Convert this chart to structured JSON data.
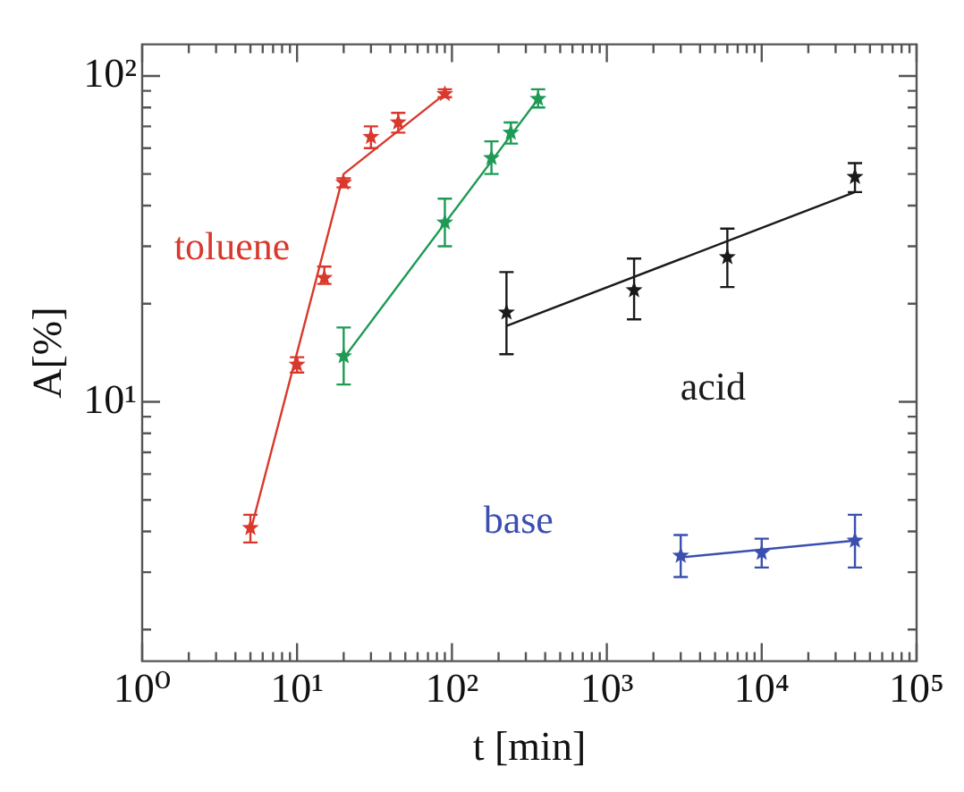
{
  "chart_data": {
    "type": "scatter",
    "xlabel": "t [min]",
    "ylabel": "A[%]",
    "log": "xy",
    "marker": "star",
    "grid": false,
    "xlim": [
      1,
      100000
    ],
    "ylim": [
      1.6,
      125
    ],
    "xticks": [
      {
        "value": 1,
        "label": "10⁰"
      },
      {
        "value": 2,
        "label": null
      },
      {
        "value": 3,
        "label": null
      },
      {
        "value": 4,
        "label": null
      },
      {
        "value": 5,
        "label": null
      },
      {
        "value": 6,
        "label": null
      },
      {
        "value": 7,
        "label": null
      },
      {
        "value": 8,
        "label": null
      },
      {
        "value": 9,
        "label": null
      },
      {
        "value": 10,
        "label": "10¹"
      },
      {
        "value": 20,
        "label": null
      },
      {
        "value": 30,
        "label": null
      },
      {
        "value": 40,
        "label": null
      },
      {
        "value": 50,
        "label": null
      },
      {
        "value": 60,
        "label": null
      },
      {
        "value": 70,
        "label": null
      },
      {
        "value": 80,
        "label": null
      },
      {
        "value": 90,
        "label": null
      },
      {
        "value": 100,
        "label": "10²"
      },
      {
        "value": 200,
        "label": null
      },
      {
        "value": 300,
        "label": null
      },
      {
        "value": 400,
        "label": null
      },
      {
        "value": 500,
        "label": null
      },
      {
        "value": 600,
        "label": null
      },
      {
        "value": 700,
        "label": null
      },
      {
        "value": 800,
        "label": null
      },
      {
        "value": 900,
        "label": null
      },
      {
        "value": 1000,
        "label": "10³"
      },
      {
        "value": 2000,
        "label": null
      },
      {
        "value": 3000,
        "label": null
      },
      {
        "value": 4000,
        "label": null
      },
      {
        "value": 5000,
        "label": null
      },
      {
        "value": 6000,
        "label": null
      },
      {
        "value": 7000,
        "label": null
      },
      {
        "value": 8000,
        "label": null
      },
      {
        "value": 9000,
        "label": null
      },
      {
        "value": 10000,
        "label": "10⁴"
      },
      {
        "value": 20000,
        "label": null
      },
      {
        "value": 30000,
        "label": null
      },
      {
        "value": 40000,
        "label": null
      },
      {
        "value": 50000,
        "label": null
      },
      {
        "value": 60000,
        "label": null
      },
      {
        "value": 70000,
        "label": null
      },
      {
        "value": 80000,
        "label": null
      },
      {
        "value": 90000,
        "label": null
      },
      {
        "value": 100000,
        "label": "10⁵"
      }
    ],
    "yticks": [
      {
        "value": 2,
        "label": null
      },
      {
        "value": 3,
        "label": null
      },
      {
        "value": 4,
        "label": null
      },
      {
        "value": 5,
        "label": null
      },
      {
        "value": 6,
        "label": null
      },
      {
        "value": 7,
        "label": null
      },
      {
        "value": 8,
        "label": null
      },
      {
        "value": 9,
        "label": null
      },
      {
        "value": 10,
        "label": "10¹"
      },
      {
        "value": 20,
        "label": null
      },
      {
        "value": 30,
        "label": null
      },
      {
        "value": 40,
        "label": null
      },
      {
        "value": 50,
        "label": null
      },
      {
        "value": 60,
        "label": null
      },
      {
        "value": 70,
        "label": null
      },
      {
        "value": 80,
        "label": null
      },
      {
        "value": 90,
        "label": null
      },
      {
        "value": 100,
        "label": "10²"
      }
    ],
    "series": [
      {
        "name": "toluene",
        "type": "scatter",
        "color": "#d9382c",
        "x": [
          5,
          10,
          15,
          20,
          30,
          45,
          90
        ],
        "values": [
          4.1,
          13,
          24,
          47,
          65,
          72,
          88
        ],
        "errors": [
          [
            3.7,
            4.5
          ],
          [
            12.3,
            13.7
          ],
          [
            23,
            26
          ],
          [
            45.5,
            48.5
          ],
          [
            60,
            70
          ],
          [
            67,
            77
          ],
          [
            86,
            91
          ]
        ]
      },
      {
        "type": "scatter",
        "color": "#1f9a55",
        "x": [
          20,
          90,
          180,
          240,
          360
        ],
        "values": [
          13.8,
          35.5,
          56,
          67,
          85
        ],
        "errors": [
          [
            11.3,
            16.9
          ],
          [
            30,
            42
          ],
          [
            50,
            63
          ],
          [
            62,
            72
          ],
          [
            80,
            91
          ]
        ]
      },
      {
        "name": "acid",
        "type": "scatter",
        "color": "#1a1a1a",
        "x": [
          225,
          1500,
          6000,
          40000
        ],
        "values": [
          18.8,
          22,
          27.8,
          49
        ],
        "errors": [
          [
            14,
            25
          ],
          [
            17.9,
            27.5
          ],
          [
            22.5,
            34
          ],
          [
            44,
            54
          ]
        ]
      },
      {
        "name": "base",
        "type": "scatter",
        "color": "#3a4fb0",
        "x": [
          3000,
          10000,
          40000
        ],
        "values": [
          3.37,
          3.44,
          3.75
        ],
        "errors": [
          [
            2.9,
            3.9
          ],
          [
            3.1,
            3.8
          ],
          [
            3.1,
            4.5
          ]
        ]
      },
      {
        "type": "line",
        "color": "#d9382c",
        "marker": "none",
        "x": [
          5,
          20,
          90
        ],
        "values": [
          4.0,
          50,
          88
        ]
      },
      {
        "type": "line",
        "color": "#1f9a55",
        "marker": "none",
        "x": [
          20,
          360
        ],
        "values": [
          13.6,
          85
        ]
      },
      {
        "type": "line",
        "color": "#1a1a1a",
        "marker": "none",
        "x": [
          225,
          40000
        ],
        "values": [
          17.1,
          44
        ]
      },
      {
        "type": "line",
        "color": "#3a4fb0",
        "marker": "none",
        "x": [
          3000,
          40000
        ],
        "values": [
          3.33,
          3.75
        ]
      }
    ]
  }
}
